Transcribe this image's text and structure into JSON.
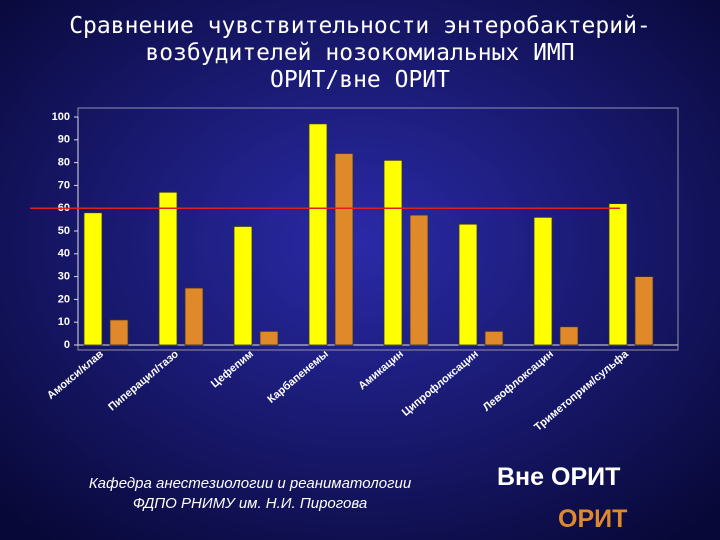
{
  "chart_data": {
    "type": "bar",
    "title": [
      "Сравнение чувствительности энтеробактерий-",
      "возбудителей нозокомиальных ИМП",
      "ОРИТ/вне ОРИТ"
    ],
    "categories": [
      "Амокси/клав",
      "Пиперацил/тазо",
      "Цефепим",
      "Карбапенемы",
      "Амикацин",
      "Ципрофлоксацин",
      "Левофлоксацин",
      "Триметоприм/сульфа"
    ],
    "series": [
      {
        "name": "Вне ОРИТ",
        "color": "#ffff00",
        "values": [
          58,
          67,
          52,
          97,
          81,
          53,
          56,
          62
        ]
      },
      {
        "name": "ОРИТ",
        "color": "#e0892a",
        "values": [
          11,
          25,
          6,
          84,
          57,
          6,
          8,
          30
        ]
      }
    ],
    "ylim": [
      0,
      100
    ],
    "yticks": [
      0,
      10,
      20,
      30,
      40,
      50,
      60,
      70,
      80,
      90,
      100
    ],
    "reference_line": {
      "value": 60,
      "color": "#e02020"
    },
    "grid": false
  },
  "footer": [
    "Кафедра анестезиологии и реаниматологии",
    "ФДПО РНИМУ им. Н.И. Пирогова"
  ]
}
